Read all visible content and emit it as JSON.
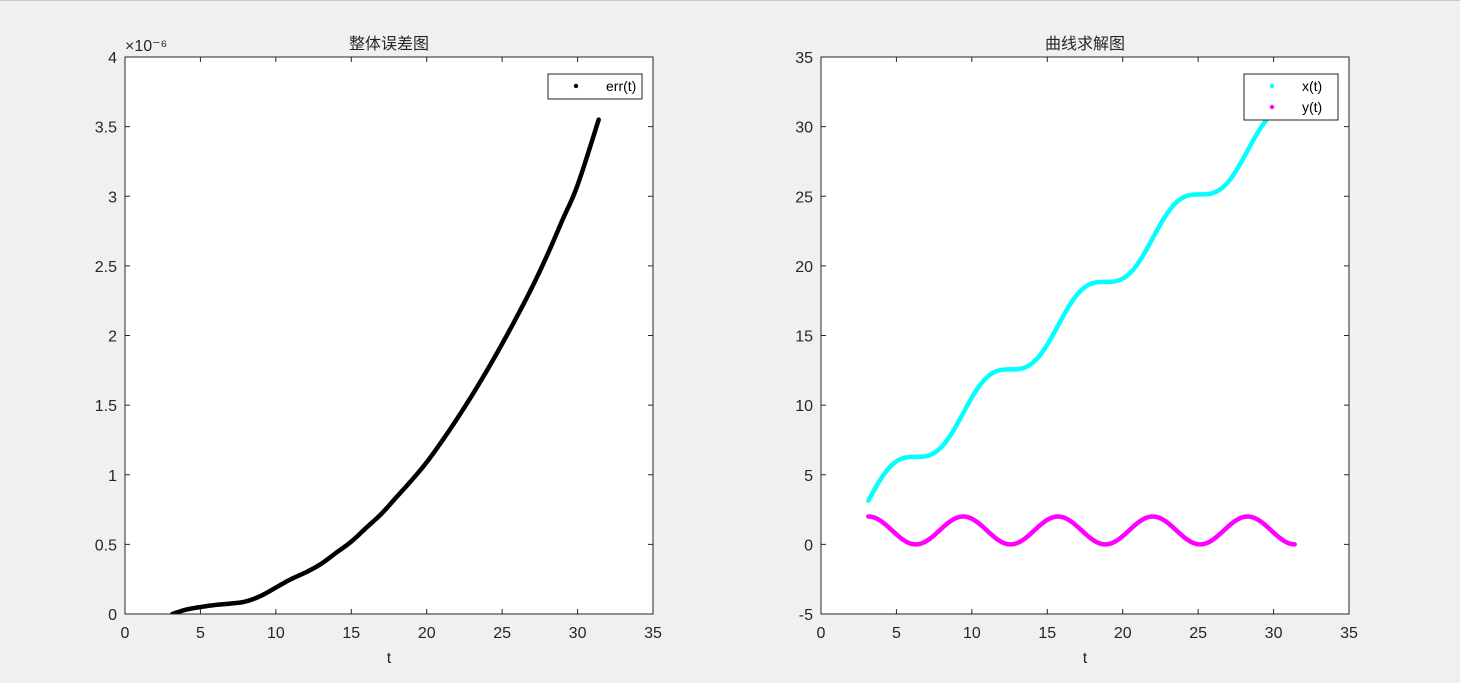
{
  "chart_data": [
    {
      "type": "scatter",
      "title": "整体误差图",
      "xlabel": "t",
      "ylabel": "",
      "xlim": [
        0,
        35
      ],
      "ylim": [
        0,
        4
      ],
      "xticks": [
        0,
        5,
        10,
        15,
        20,
        25,
        30,
        35
      ],
      "yticks": [
        0,
        0.5,
        1,
        1.5,
        2,
        2.5,
        3,
        3.5,
        4
      ],
      "y_exponent_label": "×10⁻⁶",
      "legend_position": "top-right",
      "series": [
        {
          "name": "err(t)",
          "color": "#000000",
          "marker": "dot",
          "x": [
            3.14,
            4,
            5,
            6,
            7,
            8,
            9,
            10,
            11,
            12,
            13,
            14,
            15,
            16,
            17,
            18,
            19,
            20,
            21,
            22,
            23,
            24,
            25,
            26,
            27,
            28,
            29,
            30,
            31.4
          ],
          "y": [
            0,
            0.03,
            0.05,
            0.065,
            0.075,
            0.09,
            0.13,
            0.19,
            0.25,
            0.3,
            0.36,
            0.44,
            0.52,
            0.62,
            0.72,
            0.84,
            0.96,
            1.09,
            1.24,
            1.4,
            1.57,
            1.75,
            1.94,
            2.14,
            2.35,
            2.58,
            2.83,
            3.08,
            3.55
          ]
        }
      ]
    },
    {
      "type": "scatter",
      "title": "曲线求解图",
      "xlabel": "t",
      "ylabel": "",
      "xlim": [
        0,
        35
      ],
      "ylim": [
        -5,
        35
      ],
      "xticks": [
        0,
        5,
        10,
        15,
        20,
        25,
        30,
        35
      ],
      "yticks": [
        -5,
        0,
        5,
        10,
        15,
        20,
        25,
        30,
        35
      ],
      "legend_position": "top-right",
      "series": [
        {
          "name": "x(t)",
          "color": "#00ffff",
          "marker": "dot",
          "function": "t - sin(t)",
          "x_range": [
            3.14,
            31.4
          ]
        },
        {
          "name": "y(t)",
          "color": "#ff00ff",
          "marker": "dot",
          "function": "1 - cos(t)",
          "x_range": [
            3.14,
            31.4
          ]
        }
      ]
    }
  ]
}
